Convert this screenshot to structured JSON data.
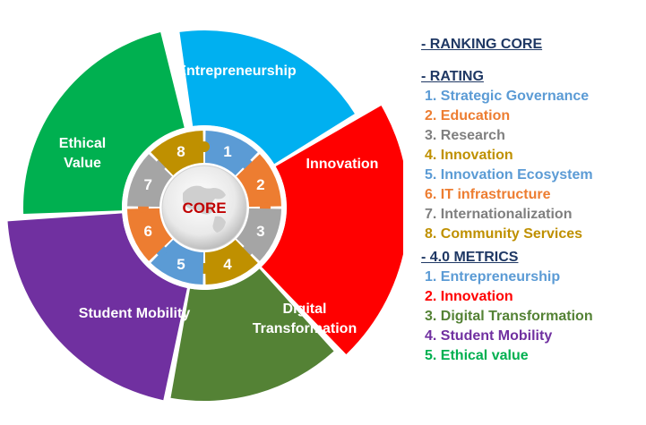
{
  "colors": {
    "blue": "#00b0f0",
    "red": "#ff0000",
    "dark_green": "#548235",
    "purple": "#7030a0",
    "green": "#00b050",
    "legend_blue": "#5b9bd5",
    "legend_orange": "#ed7d31",
    "legend_gray": "#7f7f7f",
    "legend_gold": "#bf9000",
    "heading": "#1f3864",
    "core_text": "#c00000"
  },
  "wheel": {
    "segments": [
      {
        "label_lines": [
          "Entrepreneurship"
        ],
        "color": "#00b0f0"
      },
      {
        "label_lines": [
          "Innovation"
        ],
        "color": "#ff0000"
      },
      {
        "label_lines": [
          "Digital",
          "Transformation"
        ],
        "color": "#548235"
      },
      {
        "label_lines": [
          "Student Mobility"
        ],
        "color": "#7030a0"
      },
      {
        "label_lines": [
          "Ethical",
          "Value"
        ],
        "color": "#00b050"
      }
    ],
    "ring": [
      {
        "number": "1",
        "color": "#5b9bd5"
      },
      {
        "number": "2",
        "color": "#ed7d31"
      },
      {
        "number": "3",
        "color": "#a5a5a5"
      },
      {
        "number": "4",
        "color": "#bf9000"
      },
      {
        "number": "5",
        "color": "#5b9bd5"
      },
      {
        "number": "6",
        "color": "#ed7d31"
      },
      {
        "number": "7",
        "color": "#a5a5a5"
      },
      {
        "number": "8",
        "color": "#bf9000"
      }
    ],
    "core_label": "CORE"
  },
  "legend": {
    "ranking_core": "- RANKING CORE",
    "rating": {
      "heading": "- RATING",
      "items": [
        {
          "text": "1. Strategic Governance",
          "color": "#5b9bd5"
        },
        {
          "text": "2. Education",
          "color": "#ed7d31"
        },
        {
          "text": "3. Research",
          "color": "#7f7f7f"
        },
        {
          "text": "4. Innovation",
          "color": "#bf9000"
        },
        {
          "text": "5. Innovation Ecosystem",
          "color": "#5b9bd5"
        },
        {
          "text": "6. IT infrastructure",
          "color": "#ed7d31"
        },
        {
          "text": "7. Internationalization",
          "color": "#7f7f7f"
        },
        {
          "text": "8. Community Services",
          "color": "#bf9000"
        }
      ]
    },
    "metrics": {
      "heading": "- 4.0 METRICS",
      "items": [
        {
          "text": "1. Entrepreneurship",
          "color": "#5b9bd5"
        },
        {
          "text": "2. Innovation",
          "color": "#ff0000"
        },
        {
          "text": "3. Digital Transformation",
          "color": "#548235"
        },
        {
          "text": "4. Student Mobility",
          "color": "#7030a0"
        },
        {
          "text": "5. Ethical value",
          "color": "#00b050"
        }
      ]
    }
  }
}
